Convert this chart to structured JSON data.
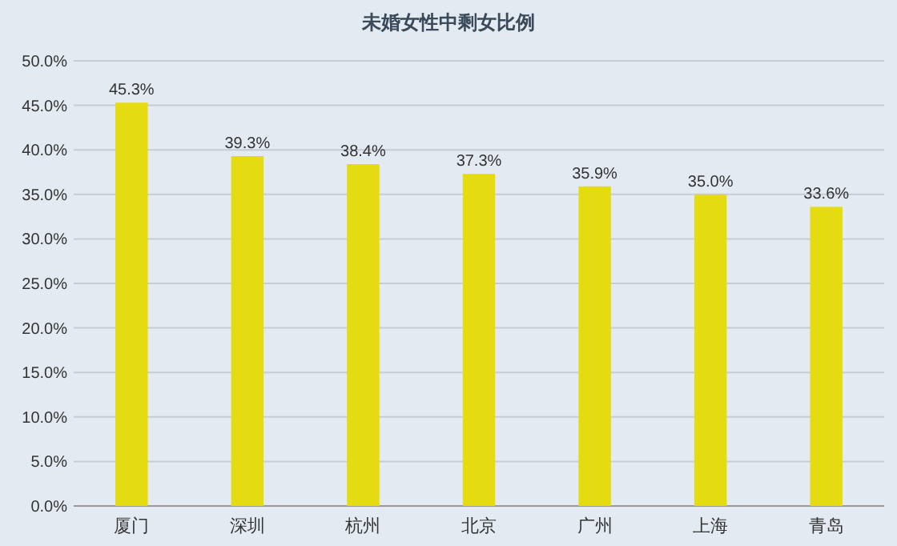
{
  "chart_data": {
    "type": "bar",
    "title": "未婚女性中剩女比例",
    "categories": [
      "厦门",
      "深圳",
      "杭州",
      "北京",
      "广州",
      "上海",
      "青岛"
    ],
    "values": [
      45.3,
      39.3,
      38.4,
      37.3,
      35.9,
      35.0,
      33.6
    ],
    "value_labels": [
      "45.3%",
      "39.3%",
      "38.4%",
      "37.3%",
      "35.9%",
      "35.0%",
      "33.6%"
    ],
    "color": "#e4dc10",
    "ylim": [
      0,
      50
    ],
    "yticks": [
      {
        "value": 0,
        "label": "0.0%"
      },
      {
        "value": 5,
        "label": "5.0%"
      },
      {
        "value": 10,
        "label": "10.0%"
      },
      {
        "value": 15,
        "label": "15.0%"
      },
      {
        "value": 20,
        "label": "20.0%"
      },
      {
        "value": 25,
        "label": "25.0%"
      },
      {
        "value": 30,
        "label": "30.0%"
      },
      {
        "value": 35,
        "label": "35.0%"
      },
      {
        "value": 40,
        "label": "40.0%"
      },
      {
        "value": 45,
        "label": "45.0%"
      },
      {
        "value": 50,
        "label": "50.0%"
      }
    ],
    "grid": "y"
  }
}
